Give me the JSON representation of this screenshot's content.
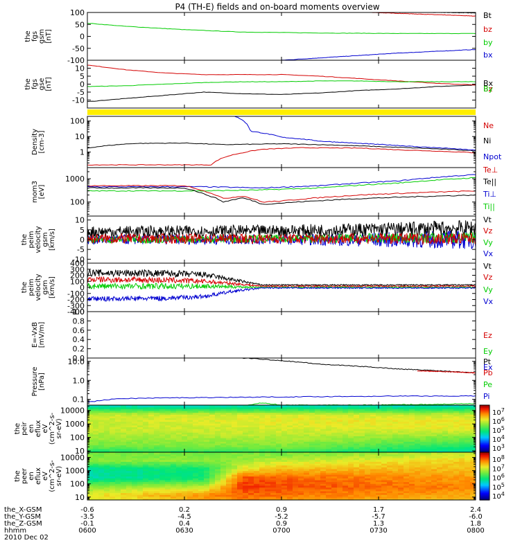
{
  "title": "P4 (TH-E) fields and on-board moments overview",
  "chart_data": [
    {
      "type": "line",
      "ylabel": [
        "the",
        "fgs",
        "gsm",
        "[nT]"
      ],
      "ylim": [
        -100,
        100
      ],
      "yticks": [
        100,
        50,
        0,
        -50,
        -100
      ],
      "legend": [
        {
          "name": "Bt",
          "color": "#000000"
        },
        {
          "name": "bz",
          "color": "#d40000"
        },
        {
          "name": "by",
          "color": "#00cc00"
        },
        {
          "name": "bx",
          "color": "#0000d0"
        }
      ],
      "series": [
        {
          "name": "Bt",
          "color": "#000000",
          "x": [
            0.7,
            1.0
          ],
          "y": [
            105,
            98
          ]
        },
        {
          "name": "bz",
          "color": "#d40000",
          "x": [
            0.7,
            1.0
          ],
          "y": [
            102,
            85
          ]
        },
        {
          "name": "by",
          "color": "#00cc00",
          "x": [
            0,
            0.1,
            0.25,
            0.4,
            0.6,
            0.8,
            1.0
          ],
          "y": [
            55,
            42,
            28,
            18,
            14,
            12,
            12
          ]
        },
        {
          "name": "bx",
          "color": "#0000d0",
          "x": [
            0.45,
            0.6,
            0.8,
            1.0
          ],
          "y": [
            -105,
            -90,
            -70,
            -55
          ]
        }
      ]
    },
    {
      "type": "line",
      "ylabel": [
        "the",
        "fgs",
        "gse",
        "[nT]"
      ],
      "ylim": [
        -15,
        15
      ],
      "yticks": [
        10,
        5,
        0,
        -5,
        -10
      ],
      "legend": [
        {
          "name": "Bx",
          "color": "#000000"
        },
        {
          "name": "Bz",
          "color": "#d40000"
        },
        {
          "name": "By",
          "color": "#00cc00"
        }
      ],
      "series": [
        {
          "name": "Bx",
          "color": "#000000",
          "x": [
            0,
            0.1,
            0.2,
            0.3,
            0.4,
            0.5,
            0.6,
            0.7,
            0.8,
            0.9,
            1.0
          ],
          "y": [
            -11,
            -9,
            -7,
            -5,
            -6,
            -6.5,
            -5.5,
            -4,
            -3,
            -1.5,
            -0.5
          ]
        },
        {
          "name": "Bz",
          "color": "#d40000",
          "x": [
            0,
            0.1,
            0.2,
            0.3,
            0.4,
            0.5,
            0.6,
            0.7,
            0.8,
            0.9,
            1.0
          ],
          "y": [
            12,
            9,
            7,
            6,
            6,
            6,
            5,
            3.5,
            2,
            0.5,
            -0.5
          ]
        },
        {
          "name": "By",
          "color": "#00cc00",
          "x": [
            0,
            0.1,
            0.2,
            0.3,
            0.4,
            0.5,
            0.6,
            0.7,
            0.8,
            0.9,
            1.0
          ],
          "y": [
            -1.5,
            -1,
            0,
            1,
            1.5,
            1.5,
            2,
            2,
            1.5,
            1.5,
            1.5
          ]
        }
      ]
    },
    {
      "type": "line",
      "ylabel": [
        "Density",
        "[cm-3]"
      ],
      "yscale": "log",
      "ylim": [
        0.1,
        200
      ],
      "yticks": [
        100,
        10,
        1
      ],
      "legend": [
        {
          "name": "Ne",
          "color": "#d40000"
        },
        {
          "name": "Ni",
          "color": "#000000"
        },
        {
          "name": "Npot",
          "color": "#0000d0"
        }
      ],
      "series": [
        {
          "name": "Ni",
          "color": "#000000",
          "x": [
            0,
            0.05,
            0.12,
            0.25,
            0.35,
            0.5,
            0.6,
            0.8,
            1.0
          ],
          "y": [
            1.8,
            2.6,
            3.6,
            3.8,
            3.0,
            3.4,
            3.0,
            2.0,
            1.2
          ]
        },
        {
          "name": "Ne",
          "color": "#d40000",
          "x": [
            0,
            0.2,
            0.32,
            0.4,
            0.45,
            0.55,
            0.7,
            0.8,
            1.0
          ],
          "y": [
            0.15,
            0.15,
            0.15,
            0.9,
            1.5,
            1.9,
            1.8,
            1.4,
            0.9
          ]
        },
        {
          "name": "Npot",
          "color": "#0000d0",
          "x": [
            0.38,
            0.42,
            0.5,
            0.6,
            0.7,
            0.85,
            1.0
          ],
          "y": [
            200,
            22,
            9,
            5,
            3.6,
            2.2,
            1.3
          ]
        }
      ]
    },
    {
      "type": "line",
      "ylabel": [
        "mom3",
        "[eV]"
      ],
      "yscale": "log",
      "ylim": [
        25,
        3000
      ],
      "yticks": [
        1000,
        100
      ],
      "legend": [
        {
          "name": "Te⊥",
          "color": "#d40000"
        },
        {
          "name": "Te||",
          "color": "#000000"
        },
        {
          "name": "Ti⊥",
          "color": "#0000d0"
        },
        {
          "name": "Ti||",
          "color": "#00cc00"
        }
      ],
      "series": [
        {
          "name": "Ti⊥",
          "color": "#0000d0",
          "x": [
            0,
            0.3,
            0.45,
            0.6,
            0.8,
            1.0
          ],
          "y": [
            450,
            450,
            400,
            500,
            800,
            1500
          ]
        },
        {
          "name": "Ti||",
          "color": "#00cc00",
          "x": [
            0,
            0.3,
            0.45,
            0.6,
            0.8,
            1.0
          ],
          "y": [
            300,
            300,
            330,
            400,
            650,
            1100
          ]
        },
        {
          "name": "Te⊥",
          "color": "#d40000",
          "x": [
            0,
            0.25,
            0.3,
            0.35,
            0.4,
            0.45,
            0.5,
            0.7,
            1.0
          ],
          "y": [
            500,
            500,
            300,
            140,
            180,
            100,
            110,
            200,
            300
          ]
        },
        {
          "name": "Te||",
          "color": "#000000",
          "x": [
            0,
            0.25,
            0.3,
            0.35,
            0.4,
            0.45,
            0.5,
            0.7,
            1.0
          ],
          "y": [
            400,
            400,
            220,
            100,
            150,
            80,
            90,
            140,
            200
          ]
        }
      ]
    },
    {
      "type": "line",
      "ylabel": [
        "the",
        "peim",
        "velocity",
        "gsm",
        "[km/s]"
      ],
      "ylim": [
        -12,
        12
      ],
      "yticks": [
        10,
        5,
        0,
        -5,
        -10
      ],
      "noisy": true,
      "legend": [
        {
          "name": "Vt",
          "color": "#000000"
        },
        {
          "name": "Vz",
          "color": "#d40000"
        },
        {
          "name": "Vy",
          "color": "#00cc00"
        },
        {
          "name": "Vx",
          "color": "#0000d0"
        }
      ],
      "series": [
        {
          "name": "Vx",
          "color": "#0000d0",
          "x": [
            0,
            0.5,
            1.0
          ],
          "y": [
            0,
            0,
            0
          ],
          "spread": [
            2.5,
            2.5,
            5
          ]
        },
        {
          "name": "Vy",
          "color": "#00cc00",
          "x": [
            0,
            0.5,
            1.0
          ],
          "y": [
            0,
            0.5,
            1
          ],
          "spread": [
            2,
            2,
            3
          ]
        },
        {
          "name": "Vt",
          "color": "#000000",
          "x": [
            0,
            0.5,
            1.0
          ],
          "y": [
            4,
            4.5,
            6
          ],
          "spread": [
            3,
            3,
            4
          ]
        },
        {
          "name": "Vz",
          "color": "#d40000",
          "x": [
            0,
            0.5,
            1.0
          ],
          "y": [
            0.5,
            0.5,
            0.5
          ],
          "spread": [
            2.5,
            2.5,
            3
          ]
        }
      ]
    },
    {
      "type": "line",
      "ylabel": [
        "the",
        "peim",
        "velocity",
        "gsm",
        "[km/s]"
      ],
      "ylim": [
        -400,
        400
      ],
      "yticks": [
        400,
        300,
        200,
        100,
        0,
        -100,
        -200,
        -300,
        -400
      ],
      "noisy": true,
      "legend": [
        {
          "name": "Vt",
          "color": "#000000"
        },
        {
          "name": "Vz",
          "color": "#d40000"
        },
        {
          "name": "Vy",
          "color": "#00cc00"
        },
        {
          "name": "Vx",
          "color": "#0000d0"
        }
      ],
      "series": [
        {
          "name": "Vt",
          "color": "#000000",
          "x": [
            0,
            0.2,
            0.3,
            0.38,
            0.45,
            1.0
          ],
          "y": [
            240,
            230,
            210,
            120,
            40,
            40
          ],
          "spread": [
            60,
            60,
            50,
            30,
            10,
            10
          ]
        },
        {
          "name": "Vz",
          "color": "#d40000",
          "x": [
            0,
            0.2,
            0.3,
            0.38,
            0.45,
            1.0
          ],
          "y": [
            130,
            120,
            100,
            60,
            20,
            20
          ],
          "spread": [
            50,
            50,
            40,
            25,
            10,
            10
          ]
        },
        {
          "name": "Vy",
          "color": "#00cc00",
          "x": [
            0,
            0.2,
            0.3,
            0.38,
            0.45,
            1.0
          ],
          "y": [
            20,
            20,
            20,
            10,
            0,
            0
          ],
          "spread": [
            50,
            50,
            40,
            25,
            10,
            10
          ]
        },
        {
          "name": "Vx",
          "color": "#0000d0",
          "x": [
            0,
            0.2,
            0.3,
            0.38,
            0.45,
            1.0
          ],
          "y": [
            -190,
            -180,
            -150,
            -60,
            -10,
            -10
          ],
          "spread": [
            40,
            40,
            35,
            25,
            10,
            10
          ]
        }
      ]
    },
    {
      "type": "line",
      "ylabel": [
        "E=-VxB",
        "[mV/m]"
      ],
      "ylim": [
        0,
        1
      ],
      "yticks": [
        1.0,
        0.8,
        0.6,
        0.4,
        0.2,
        0.0
      ],
      "yformat": "fixed1",
      "legend": [
        {
          "name": "Ez",
          "color": "#d40000"
        },
        {
          "name": "Ey",
          "color": "#00cc00"
        },
        {
          "name": "Ex",
          "color": "#0000d0"
        }
      ],
      "series": []
    },
    {
      "type": "line",
      "ylabel": [
        "Pressure",
        "[nPa]"
      ],
      "yscale": "log",
      "ylim": [
        0.05,
        15
      ],
      "yticks": [
        10.0,
        1.0,
        0.1
      ],
      "yformat": "fixed1",
      "legend": [
        {
          "name": "Pt",
          "color": "#000000"
        },
        {
          "name": "Pb",
          "color": "#d40000"
        },
        {
          "name": "Pe",
          "color": "#00cc00"
        },
        {
          "name": "Pi",
          "color": "#0000d0"
        }
      ],
      "series": [
        {
          "name": "Pt",
          "color": "#000000",
          "x": [
            0.4,
            0.6,
            0.8,
            1.0
          ],
          "y": [
            15,
            7,
            4,
            2.5
          ]
        },
        {
          "name": "Pb",
          "color": "#d40000",
          "x": [
            0.85,
            1.0
          ],
          "y": [
            3.2,
            2.5
          ]
        },
        {
          "name": "Pi",
          "color": "#0000d0",
          "x": [
            0,
            0.08,
            0.2,
            0.4,
            0.6,
            0.8,
            1.0
          ],
          "y": [
            0.07,
            0.11,
            0.12,
            0.13,
            0.14,
            0.15,
            0.15
          ]
        },
        {
          "name": "Pe",
          "color": "#00cc00",
          "x": [
            0.35,
            0.4,
            0.45,
            0.5,
            0.7,
            0.9,
            1.0
          ],
          "y": [
            0.04,
            0.045,
            0.065,
            0.05,
            0.05,
            0.055,
            0.06
          ]
        }
      ]
    },
    {
      "type": "heatmap",
      "ylabel": [
        "the",
        "peir",
        "en",
        "eflux",
        "eV",
        "(cm^2-s-",
        "sr-eV)"
      ],
      "yscale": "log",
      "ylim": [
        8,
        25000
      ],
      "yticks": [
        10000,
        1000,
        100,
        10
      ],
      "colorbar_label": "",
      "colorbar_ticks": [
        "10^7",
        "10^6",
        "10^5",
        "10^4",
        "10^3"
      ],
      "zlim_exp": [
        2.5,
        7.5
      ],
      "bands": [
        {
          "e": 20000,
          "t": [
            0,
            0.5,
            1.0
          ],
          "z": [
            4.5,
            4.5,
            4.5
          ]
        },
        {
          "e": 5000,
          "t": [
            0,
            0.5,
            1.0
          ],
          "z": [
            5.8,
            5.9,
            5.8
          ]
        },
        {
          "e": 2000,
          "t": [
            0,
            0.5,
            1.0
          ],
          "z": [
            5.8,
            6.0,
            6.0
          ]
        },
        {
          "e": 500,
          "t": [
            0,
            0.5,
            1.0
          ],
          "z": [
            5.8,
            5.9,
            6.0
          ]
        },
        {
          "e": 100,
          "t": [
            0,
            0.5,
            1.0
          ],
          "z": [
            5.6,
            5.7,
            5.4
          ]
        },
        {
          "e": 20,
          "t": [
            0,
            0.5,
            1.0
          ],
          "z": [
            5.3,
            5.4,
            4.8
          ]
        },
        {
          "e": 8,
          "t": [
            0,
            0.5,
            1.0
          ],
          "z": [
            4.8,
            4.9,
            4.4
          ]
        }
      ]
    },
    {
      "type": "heatmap",
      "ylabel": [
        "the",
        "peer",
        "en",
        "eflux",
        "eV",
        "(cm^2-s-",
        "sr-eV)"
      ],
      "yscale": "log",
      "ylim": [
        6,
        25000
      ],
      "yticks": [
        10000,
        1000,
        100,
        10
      ],
      "colorbar_label": "",
      "colorbar_ticks": [
        "10^8",
        "10^7",
        "10^6",
        "10^5",
        "10^4"
      ],
      "zlim_exp": [
        3.5,
        8.5
      ],
      "bands": [
        {
          "e": 20000,
          "t": [
            0,
            0.5,
            1.0
          ],
          "z": [
            6.4,
            6.4,
            6.8
          ]
        },
        {
          "e": 6000,
          "t": [
            0,
            0.35,
            0.5,
            1.0
          ],
          "z": [
            6.5,
            6.5,
            6.8,
            7.2
          ]
        },
        {
          "e": 1500,
          "t": [
            0,
            0.3,
            0.4,
            0.5,
            1.0
          ],
          "z": [
            5.6,
            5.8,
            7.0,
            7.3,
            7.3
          ]
        },
        {
          "e": 300,
          "t": [
            0,
            0.3,
            0.4,
            0.5,
            1.0
          ],
          "z": [
            5.5,
            5.8,
            7.9,
            7.8,
            7.5
          ]
        },
        {
          "e": 60,
          "t": [
            0,
            0.3,
            0.4,
            0.5,
            1.0
          ],
          "z": [
            6.5,
            6.8,
            8.0,
            7.9,
            7.6
          ]
        },
        {
          "e": 15,
          "t": [
            0,
            0.4,
            1.0
          ],
          "z": [
            7.0,
            7.8,
            7.4
          ]
        },
        {
          "e": 6,
          "t": [
            0,
            0.4,
            1.0
          ],
          "z": [
            6.8,
            7.6,
            7.2
          ]
        }
      ]
    }
  ],
  "xaxis": {
    "labels": [
      "the_X-GSM",
      "the_Y-GSM",
      "the_Z-GSM",
      "hhmm",
      "2010 Dec 02"
    ],
    "columns": [
      [
        "-0.6",
        "-3.5",
        "-0.1",
        "0600"
      ],
      [
        "0.2",
        "-4.5",
        "0.4",
        "0630"
      ],
      [
        "0.9",
        "-5.2",
        "0.9",
        "0700"
      ],
      [
        "1.7",
        "-5.7",
        "1.3",
        "0730"
      ],
      [
        "2.4",
        "-6.0",
        "1.8",
        "0800"
      ]
    ]
  }
}
